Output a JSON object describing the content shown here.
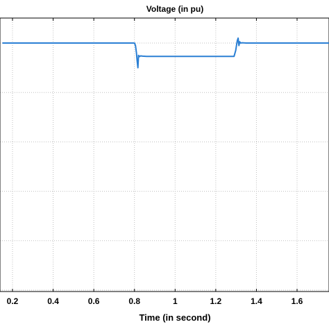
{
  "chart_data": {
    "type": "line",
    "title": "Voltage (in pu)",
    "xlabel": "Time (in second)",
    "ylabel": "",
    "xlim": [
      0.15,
      1.8
    ],
    "ylim": [
      0.0,
      1.08
    ],
    "xticks": [
      0.2,
      0.4,
      0.6,
      0.8,
      1.0,
      1.2,
      1.4,
      1.6
    ],
    "xtick_labels": [
      "0.2",
      "0.4",
      "0.6",
      "0.8",
      "1",
      "1.2",
      "1.4",
      "1.6"
    ],
    "yticks": [
      0.0,
      0.2,
      0.4,
      0.6,
      0.8,
      1.0
    ],
    "grid": true,
    "series": [
      {
        "color": "#2a7fd4",
        "x": [
          0.15,
          0.8,
          0.805,
          0.81,
          0.813,
          0.817,
          0.82,
          0.825,
          0.83,
          0.84,
          0.86,
          1.0,
          1.2,
          1.29,
          1.298,
          1.302,
          1.306,
          1.31,
          1.314,
          1.318,
          1.322,
          1.33,
          1.35,
          1.6,
          1.8
        ],
        "y": [
          1.0,
          1.0,
          0.99,
          0.96,
          0.93,
          0.9,
          0.95,
          0.945,
          0.948,
          0.947,
          0.946,
          0.946,
          0.946,
          0.946,
          0.97,
          0.99,
          1.01,
          1.02,
          0.99,
          1.005,
          1.0,
          1.001,
          1.0,
          1.0,
          1.0
        ]
      }
    ]
  }
}
